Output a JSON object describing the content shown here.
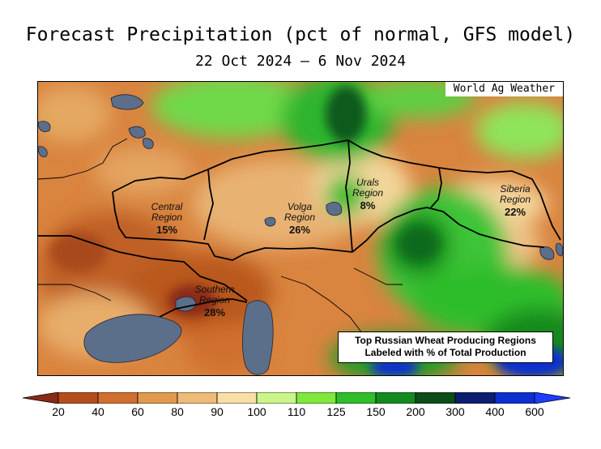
{
  "title": "Forecast Precipitation (pct of normal, GFS model)",
  "subtitle": "22 Oct 2024 — 6 Nov 2024",
  "watermark": "World Ag Weather",
  "regions": [
    {
      "name_lines": [
        "Central",
        "Region"
      ],
      "pct": "15%"
    },
    {
      "name_lines": [
        "Volga",
        "Region"
      ],
      "pct": "26%"
    },
    {
      "name_lines": [
        "Urals",
        "Region"
      ],
      "pct": "8%"
    },
    {
      "name_lines": [
        "Siberia",
        "Region"
      ],
      "pct": "22%"
    },
    {
      "name_lines": [
        "Southern",
        "Region"
      ],
      "pct": "28%"
    }
  ],
  "note": {
    "line1": "Top Russian Wheat Producing Regions",
    "line2": "Labeled with % of Total Production"
  },
  "legend": {
    "tick_labels": [
      "20",
      "40",
      "60",
      "80",
      "90",
      "100",
      "110",
      "125",
      "150",
      "200",
      "300",
      "400",
      "600"
    ],
    "colors": [
      "#8b2a14",
      "#b64e1c",
      "#d06f2f",
      "#e0994f",
      "#eebb78",
      "#f7dfa5",
      "#c9f58a",
      "#7fe83c",
      "#2fbd2a",
      "#138a1e",
      "#0c4d18",
      "#0c1e6e",
      "#0e2fcf",
      "#1e3cff"
    ]
  },
  "colors": {
    "water": "#5b6f8a",
    "border": "#000000"
  }
}
